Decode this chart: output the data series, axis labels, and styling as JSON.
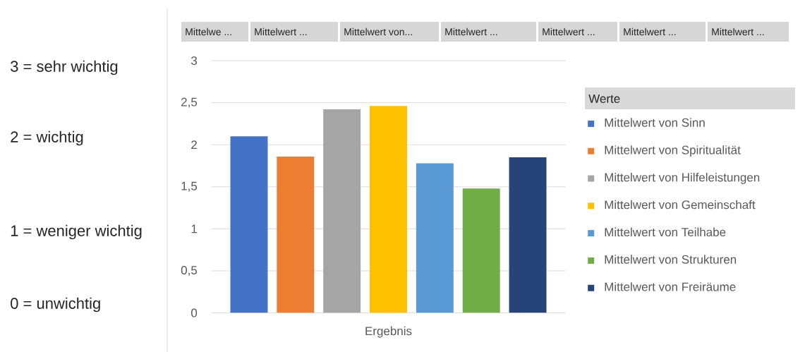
{
  "chart_data": {
    "type": "bar",
    "categories": [
      "Ergebnis"
    ],
    "series": [
      {
        "name": "Mittelwert von Sinn",
        "color": "#4472c4",
        "values": [
          2.1
        ]
      },
      {
        "name": "Mittelwert von Spiritualität",
        "color": "#ed7d31",
        "values": [
          1.86
        ]
      },
      {
        "name": "Mittelwert von Hilfeleistungen",
        "color": "#a5a5a5",
        "values": [
          2.42
        ]
      },
      {
        "name": "Mittelwert von Gemeinschaft",
        "color": "#ffc000",
        "values": [
          2.46
        ]
      },
      {
        "name": "Mittelwert von Teilhabe",
        "color": "#5b9bd5",
        "values": [
          1.78
        ]
      },
      {
        "name": "Mittelwert von Strukturen",
        "color": "#70ad47",
        "values": [
          1.48
        ]
      },
      {
        "name": "Mittelwert von Freiräume",
        "color": "#264478",
        "values": [
          1.85
        ]
      }
    ],
    "legend_title": "Werte",
    "ylim": [
      0,
      3
    ],
    "yticks": [
      0,
      {
        "value": 0.5,
        "label": "0,5"
      },
      1,
      {
        "value": 1.5,
        "label": "1,5"
      },
      2,
      {
        "value": 2.5,
        "label": "2,5"
      },
      3
    ],
    "grid": "y",
    "legend": "right",
    "annotations": [
      "Mittelwe ...",
      "Mittelwert ...",
      "Mittelwert von...",
      "Mittelwert ...",
      "Mittelwert ...",
      "Mittelwert ...",
      "Mittelwert ...",
      "3 = sehr wichtig",
      "2 = wichtig",
      "1 = weniger wichtig",
      "0 = unwichtig"
    ]
  }
}
